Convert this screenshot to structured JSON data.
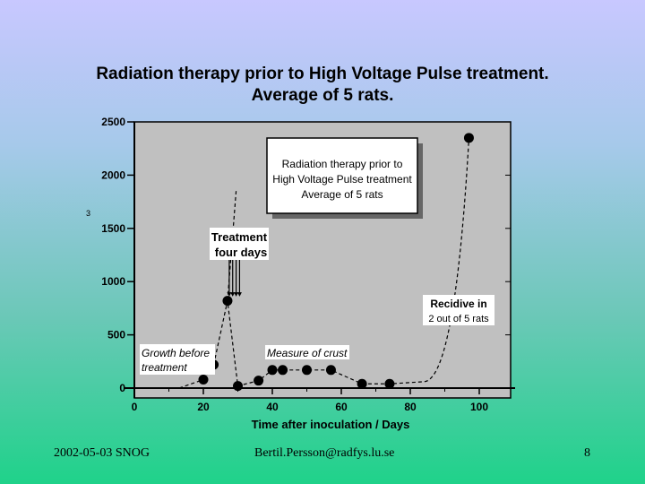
{
  "slide": {
    "title_line1": "Radiation therapy prior to High Voltage Pulse treatment.",
    "title_line2": "Average of 5 rats.",
    "footer_date": "2002-05-03 SNOG",
    "footer_email": "Bertil.Persson@radfys.lu.se",
    "footer_page": "8"
  },
  "chart_data": {
    "type": "scatter",
    "title": "",
    "xlabel": "Time after inoculation / Days",
    "ylabel": "",
    "ylabel_fragment": "3",
    "xlim": [
      0,
      110
    ],
    "ylim": [
      0,
      2500
    ],
    "x_ticks": [
      0,
      20,
      40,
      60,
      80,
      100
    ],
    "y_ticks": [
      0,
      500,
      1000,
      1500,
      2000,
      2500
    ],
    "grid": false,
    "series": [
      {
        "points": [
          {
            "x": 20,
            "y": 80
          },
          {
            "x": 23,
            "y": 220
          },
          {
            "x": 27,
            "y": 820
          },
          {
            "x": 30,
            "y": 20
          },
          {
            "x": 36,
            "y": 70
          },
          {
            "x": 40,
            "y": 170
          },
          {
            "x": 43,
            "y": 170
          },
          {
            "x": 50,
            "y": 170
          },
          {
            "x": 57,
            "y": 170
          },
          {
            "x": 66,
            "y": 40
          },
          {
            "x": 74,
            "y": 40
          },
          {
            "x": 97,
            "y": 2350
          }
        ]
      }
    ],
    "annotations": {
      "inset_line1": "Radiation therapy prior to",
      "inset_line2": "High Voltage Pulse treatment",
      "inset_line3": "Average of 5 rats",
      "treatment_line1": "Treatment",
      "treatment_line2": "four days",
      "growth_line1": "Growth before",
      "growth_line2": "treatment",
      "crust": "Measure of crust",
      "recidive_line1": "Recidive in",
      "recidive_line2": "2 out of 5 rats"
    },
    "treatment_days": [
      27.5,
      28.5,
      29.5,
      30.5
    ]
  }
}
